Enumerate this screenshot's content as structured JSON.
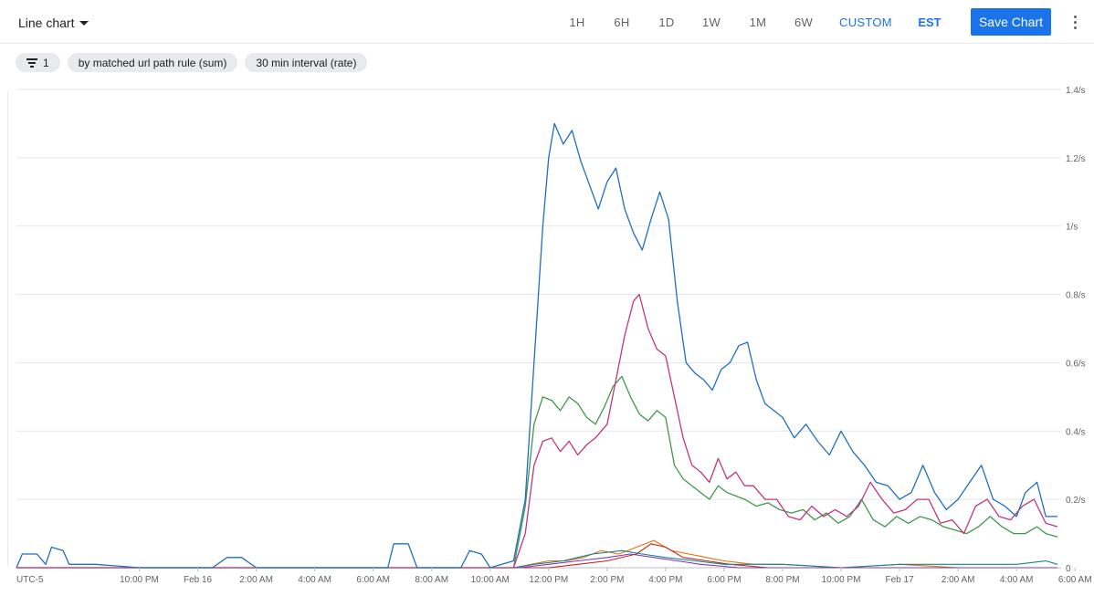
{
  "toolbar": {
    "chart_type_label": "Line chart",
    "ranges": [
      "1H",
      "6H",
      "1D",
      "1W",
      "1M",
      "6W",
      "CUSTOM"
    ],
    "active_range": "CUSTOM",
    "timezone": "EST",
    "save_label": "Save Chart",
    "more_icon": "more-vert-icon"
  },
  "chips": {
    "filter_count": "1",
    "filter_icon": "filter-list-icon",
    "group_by": "by matched url path rule (sum)",
    "interval": "30 min interval (rate)"
  },
  "colors": {
    "blue": "#1f6fc1",
    "magenta": "#c2357f",
    "green": "#3d9a49",
    "orange": "#e8710a",
    "red": "#c5221f",
    "teal": "#12858f",
    "purple": "#7b3ab8",
    "grid": "#e6e6e6",
    "active": "#1a73e8"
  },
  "chart_data": {
    "type": "line",
    "timezone_label": "UTC-5",
    "x_ticks": [
      "10:00 PM",
      "Feb 16",
      "2:00 AM",
      "4:00 AM",
      "6:00 AM",
      "8:00 AM",
      "10:00 AM",
      "12:00 PM",
      "2:00 PM",
      "4:00 PM",
      "6:00 PM",
      "8:00 PM",
      "10:00 PM",
      "Feb 17",
      "2:00 AM",
      "4:00 AM",
      "6:00 AM"
    ],
    "x_range_hours": [
      -4.2,
      31.4
    ],
    "y_ticks": [
      "0",
      "0.2/s",
      "0.4/s",
      "0.6/s",
      "0.8/s",
      "1/s",
      "1.2/s",
      "1.4/s"
    ],
    "y_range": [
      0,
      1.4
    ],
    "grid": true,
    "legend": "none",
    "series": [
      {
        "color": "#1f6fc1",
        "points": [
          [
            -4.2,
            0.0
          ],
          [
            -4.0,
            0.04
          ],
          [
            -3.5,
            0.04
          ],
          [
            -3.2,
            0.01
          ],
          [
            -3.0,
            0.06
          ],
          [
            -2.6,
            0.05
          ],
          [
            -2.4,
            0.01
          ],
          [
            -1.5,
            0.01
          ],
          [
            0,
            0.0
          ],
          [
            2.5,
            0.0
          ],
          [
            3.0,
            0.03
          ],
          [
            3.5,
            0.03
          ],
          [
            4.0,
            0.0
          ],
          [
            8.5,
            0.0
          ],
          [
            8.7,
            0.07
          ],
          [
            9.2,
            0.07
          ],
          [
            9.5,
            0.0
          ],
          [
            11.0,
            0.0
          ],
          [
            11.3,
            0.05
          ],
          [
            11.7,
            0.04
          ],
          [
            12.0,
            0.0
          ],
          [
            12.8,
            0.02
          ],
          [
            13.2,
            0.2
          ],
          [
            13.5,
            0.6
          ],
          [
            13.8,
            1.0
          ],
          [
            14.0,
            1.2
          ],
          [
            14.2,
            1.3
          ],
          [
            14.5,
            1.24
          ],
          [
            14.8,
            1.28
          ],
          [
            15.1,
            1.19
          ],
          [
            15.4,
            1.12
          ],
          [
            15.7,
            1.05
          ],
          [
            16.0,
            1.13
          ],
          [
            16.3,
            1.17
          ],
          [
            16.6,
            1.05
          ],
          [
            16.9,
            0.98
          ],
          [
            17.2,
            0.93
          ],
          [
            17.5,
            1.02
          ],
          [
            17.8,
            1.1
          ],
          [
            18.1,
            1.02
          ],
          [
            18.4,
            0.78
          ],
          [
            18.7,
            0.6
          ],
          [
            19.0,
            0.57
          ],
          [
            19.3,
            0.55
          ],
          [
            19.6,
            0.52
          ],
          [
            19.9,
            0.58
          ],
          [
            20.2,
            0.6
          ],
          [
            20.5,
            0.65
          ],
          [
            20.8,
            0.66
          ],
          [
            21.1,
            0.55
          ],
          [
            21.4,
            0.48
          ],
          [
            21.7,
            0.46
          ],
          [
            22.0,
            0.44
          ],
          [
            22.4,
            0.38
          ],
          [
            22.8,
            0.42
          ],
          [
            23.2,
            0.37
          ],
          [
            23.6,
            0.33
          ],
          [
            24.0,
            0.4
          ],
          [
            24.4,
            0.34
          ],
          [
            24.8,
            0.3
          ],
          [
            25.2,
            0.25
          ],
          [
            25.6,
            0.24
          ],
          [
            26.0,
            0.2
          ],
          [
            26.4,
            0.22
          ],
          [
            26.8,
            0.3
          ],
          [
            27.2,
            0.22
          ],
          [
            27.6,
            0.17
          ],
          [
            28.0,
            0.2
          ],
          [
            28.4,
            0.25
          ],
          [
            28.8,
            0.3
          ],
          [
            29.2,
            0.2
          ],
          [
            29.6,
            0.18
          ],
          [
            30.0,
            0.15
          ],
          [
            30.3,
            0.22
          ],
          [
            30.7,
            0.25
          ],
          [
            31.0,
            0.15
          ],
          [
            31.4,
            0.15
          ]
        ]
      },
      {
        "color": "#c2357f",
        "points": [
          [
            -4.2,
            0.0
          ],
          [
            12.8,
            0.0
          ],
          [
            13.2,
            0.1
          ],
          [
            13.5,
            0.3
          ],
          [
            13.8,
            0.37
          ],
          [
            14.1,
            0.38
          ],
          [
            14.4,
            0.34
          ],
          [
            14.7,
            0.37
          ],
          [
            15.0,
            0.33
          ],
          [
            15.3,
            0.36
          ],
          [
            15.6,
            0.38
          ],
          [
            16.0,
            0.42
          ],
          [
            16.3,
            0.55
          ],
          [
            16.6,
            0.68
          ],
          [
            16.9,
            0.78
          ],
          [
            17.1,
            0.8
          ],
          [
            17.4,
            0.7
          ],
          [
            17.7,
            0.64
          ],
          [
            18.0,
            0.62
          ],
          [
            18.3,
            0.5
          ],
          [
            18.6,
            0.38
          ],
          [
            18.9,
            0.3
          ],
          [
            19.2,
            0.28
          ],
          [
            19.5,
            0.25
          ],
          [
            19.8,
            0.32
          ],
          [
            20.1,
            0.26
          ],
          [
            20.4,
            0.28
          ],
          [
            20.7,
            0.24
          ],
          [
            21.0,
            0.24
          ],
          [
            21.4,
            0.2
          ],
          [
            21.8,
            0.2
          ],
          [
            22.2,
            0.15
          ],
          [
            22.6,
            0.14
          ],
          [
            23.0,
            0.18
          ],
          [
            23.4,
            0.15
          ],
          [
            23.8,
            0.17
          ],
          [
            24.2,
            0.15
          ],
          [
            24.6,
            0.18
          ],
          [
            25.0,
            0.25
          ],
          [
            25.4,
            0.2
          ],
          [
            25.8,
            0.16
          ],
          [
            26.2,
            0.17
          ],
          [
            26.6,
            0.2
          ],
          [
            27.0,
            0.2
          ],
          [
            27.4,
            0.13
          ],
          [
            27.8,
            0.14
          ],
          [
            28.2,
            0.1
          ],
          [
            28.6,
            0.18
          ],
          [
            29.0,
            0.2
          ],
          [
            29.4,
            0.15
          ],
          [
            29.8,
            0.14
          ],
          [
            30.2,
            0.18
          ],
          [
            30.6,
            0.2
          ],
          [
            31.0,
            0.13
          ],
          [
            31.4,
            0.12
          ]
        ]
      },
      {
        "color": "#3d9a49",
        "points": [
          [
            -4.2,
            0.0
          ],
          [
            12.8,
            0.0
          ],
          [
            13.2,
            0.18
          ],
          [
            13.5,
            0.42
          ],
          [
            13.8,
            0.5
          ],
          [
            14.1,
            0.49
          ],
          [
            14.4,
            0.46
          ],
          [
            14.7,
            0.5
          ],
          [
            15.0,
            0.48
          ],
          [
            15.3,
            0.44
          ],
          [
            15.6,
            0.42
          ],
          [
            15.9,
            0.47
          ],
          [
            16.2,
            0.53
          ],
          [
            16.5,
            0.56
          ],
          [
            16.8,
            0.5
          ],
          [
            17.1,
            0.45
          ],
          [
            17.4,
            0.43
          ],
          [
            17.7,
            0.46
          ],
          [
            18.0,
            0.44
          ],
          [
            18.3,
            0.3
          ],
          [
            18.6,
            0.26
          ],
          [
            18.9,
            0.24
          ],
          [
            19.2,
            0.22
          ],
          [
            19.5,
            0.2
          ],
          [
            19.8,
            0.24
          ],
          [
            20.1,
            0.22
          ],
          [
            20.4,
            0.21
          ],
          [
            20.7,
            0.2
          ],
          [
            21.1,
            0.18
          ],
          [
            21.5,
            0.19
          ],
          [
            21.9,
            0.17
          ],
          [
            22.3,
            0.16
          ],
          [
            22.7,
            0.17
          ],
          [
            23.1,
            0.14
          ],
          [
            23.5,
            0.16
          ],
          [
            23.9,
            0.13
          ],
          [
            24.3,
            0.15
          ],
          [
            24.7,
            0.2
          ],
          [
            25.1,
            0.14
          ],
          [
            25.5,
            0.12
          ],
          [
            25.9,
            0.15
          ],
          [
            26.3,
            0.13
          ],
          [
            26.7,
            0.15
          ],
          [
            27.1,
            0.14
          ],
          [
            27.5,
            0.12
          ],
          [
            27.9,
            0.11
          ],
          [
            28.3,
            0.1
          ],
          [
            28.7,
            0.12
          ],
          [
            29.1,
            0.15
          ],
          [
            29.5,
            0.12
          ],
          [
            29.9,
            0.1
          ],
          [
            30.3,
            0.1
          ],
          [
            30.7,
            0.12
          ],
          [
            31.0,
            0.1
          ],
          [
            31.4,
            0.09
          ]
        ]
      },
      {
        "color": "#e8710a",
        "points": [
          [
            -4.2,
            0.0
          ],
          [
            12.8,
            0.0
          ],
          [
            13.4,
            0.01
          ],
          [
            14.0,
            0.02
          ],
          [
            14.6,
            0.02
          ],
          [
            15.2,
            0.03
          ],
          [
            15.8,
            0.05
          ],
          [
            16.4,
            0.04
          ],
          [
            17.0,
            0.06
          ],
          [
            17.6,
            0.08
          ],
          [
            18.2,
            0.05
          ],
          [
            18.8,
            0.04
          ],
          [
            19.4,
            0.03
          ],
          [
            20.0,
            0.02
          ],
          [
            21.0,
            0.01
          ],
          [
            22.0,
            0.01
          ],
          [
            24.0,
            0.0
          ],
          [
            26.0,
            0.01
          ],
          [
            28.0,
            0.0
          ],
          [
            31.4,
            0.0
          ]
        ]
      },
      {
        "color": "#c5221f",
        "points": [
          [
            -4.2,
            0.0
          ],
          [
            14.0,
            0.0
          ],
          [
            15.0,
            0.01
          ],
          [
            16.0,
            0.02
          ],
          [
            17.0,
            0.04
          ],
          [
            17.5,
            0.07
          ],
          [
            18.0,
            0.06
          ],
          [
            18.6,
            0.03
          ],
          [
            19.4,
            0.02
          ],
          [
            20.2,
            0.01
          ],
          [
            21.5,
            0.0
          ],
          [
            31.4,
            0.0
          ]
        ]
      },
      {
        "color": "#12858f",
        "points": [
          [
            -4.2,
            0.0
          ],
          [
            12.8,
            0.0
          ],
          [
            13.5,
            0.01
          ],
          [
            14.5,
            0.02
          ],
          [
            15.5,
            0.04
          ],
          [
            16.5,
            0.05
          ],
          [
            17.2,
            0.04
          ],
          [
            18.0,
            0.03
          ],
          [
            19.0,
            0.02
          ],
          [
            20.0,
            0.01
          ],
          [
            22.0,
            0.01
          ],
          [
            24.0,
            0.0
          ],
          [
            26.0,
            0.01
          ],
          [
            28.0,
            0.01
          ],
          [
            30.0,
            0.01
          ],
          [
            31.0,
            0.02
          ],
          [
            31.4,
            0.01
          ]
        ]
      },
      {
        "color": "#7b3ab8",
        "points": [
          [
            -4.2,
            0.0
          ],
          [
            13.0,
            0.0
          ],
          [
            14.0,
            0.01
          ],
          [
            15.0,
            0.02
          ],
          [
            16.0,
            0.03
          ],
          [
            16.8,
            0.04
          ],
          [
            17.6,
            0.03
          ],
          [
            18.4,
            0.02
          ],
          [
            19.2,
            0.01
          ],
          [
            20.5,
            0.0
          ],
          [
            31.4,
            0.0
          ]
        ]
      }
    ]
  }
}
